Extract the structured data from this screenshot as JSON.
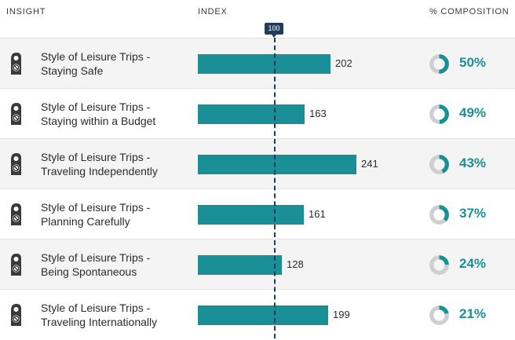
{
  "headers": {
    "insight": "INSIGHT",
    "index": "INDEX",
    "composition": "% COMPOSITION"
  },
  "reference_label": "100",
  "icon": "door-hanger-icon",
  "colors": {
    "bar": "#1b8f96",
    "marker": "#1d3d5c",
    "donut_track": "#cfcfcf"
  },
  "chart_data": {
    "type": "bar",
    "reference_value": 100,
    "categories": [
      [
        "Style of Leisure Trips -",
        "Staying Safe"
      ],
      [
        "Style of Leisure Trips -",
        "Staying within a Budget"
      ],
      [
        "Style of Leisure Trips -",
        "Traveling Independently"
      ],
      [
        "Style of Leisure Trips -",
        "Planning Carefully"
      ],
      [
        "Style of Leisure Trips -",
        "Being Spontaneous"
      ],
      [
        "Style of Leisure Trips -",
        "Traveling Internationally"
      ]
    ],
    "index_values": [
      202,
      163,
      241,
      161,
      128,
      199
    ],
    "composition_values": [
      50,
      49,
      43,
      37,
      24,
      21
    ],
    "composition_labels": [
      "50%",
      "49%",
      "43%",
      "37%",
      "24%",
      "21%"
    ]
  }
}
